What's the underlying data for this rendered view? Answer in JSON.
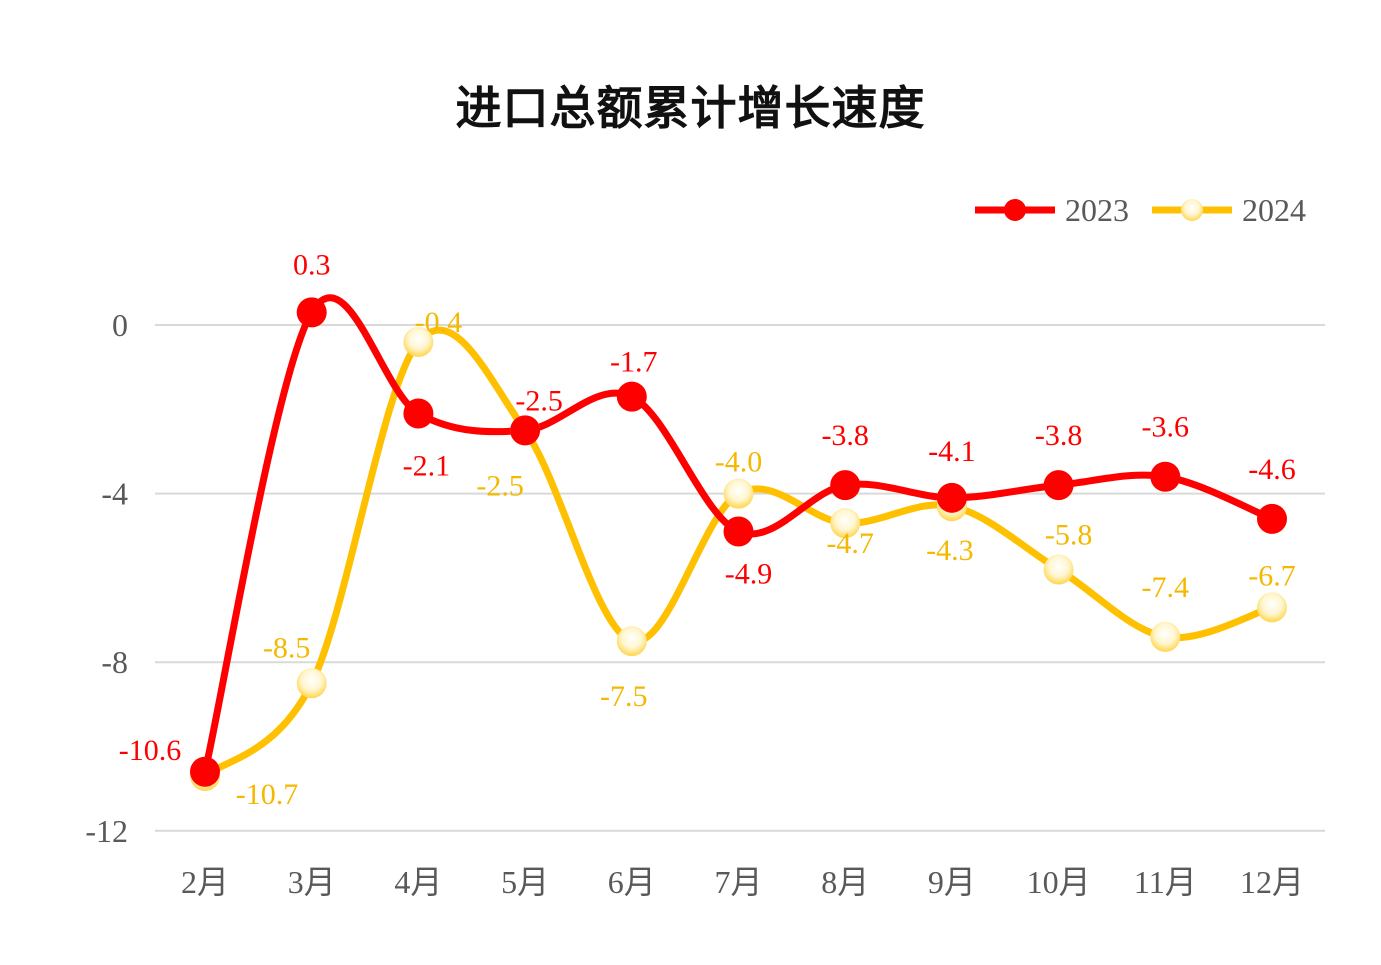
{
  "chart_data": {
    "type": "line",
    "title": "进口总额累计增长速度",
    "categories": [
      "2月",
      "3月",
      "4月",
      "5月",
      "6月",
      "7月",
      "8月",
      "9月",
      "10月",
      "11月",
      "12月"
    ],
    "series": [
      {
        "name": "2023",
        "color": "#ff0000",
        "values": [
          -10.6,
          0.3,
          -2.1,
          -2.5,
          -1.7,
          -4.9,
          -3.8,
          -4.1,
          -3.8,
          -3.6,
          -4.6
        ]
      },
      {
        "name": "2024",
        "color": "#ffc000",
        "values": [
          -10.7,
          -8.5,
          -0.4,
          -2.5,
          -7.5,
          -4.0,
          -4.7,
          -4.3,
          -5.8,
          -7.4,
          -6.7
        ]
      }
    ],
    "yticks": [
      "0",
      "-4",
      "-8",
      "-12"
    ],
    "ylim": [
      -12,
      0
    ],
    "smooth": true,
    "grid": true,
    "legend": "top-right",
    "xlabel": "",
    "ylabel": ""
  }
}
